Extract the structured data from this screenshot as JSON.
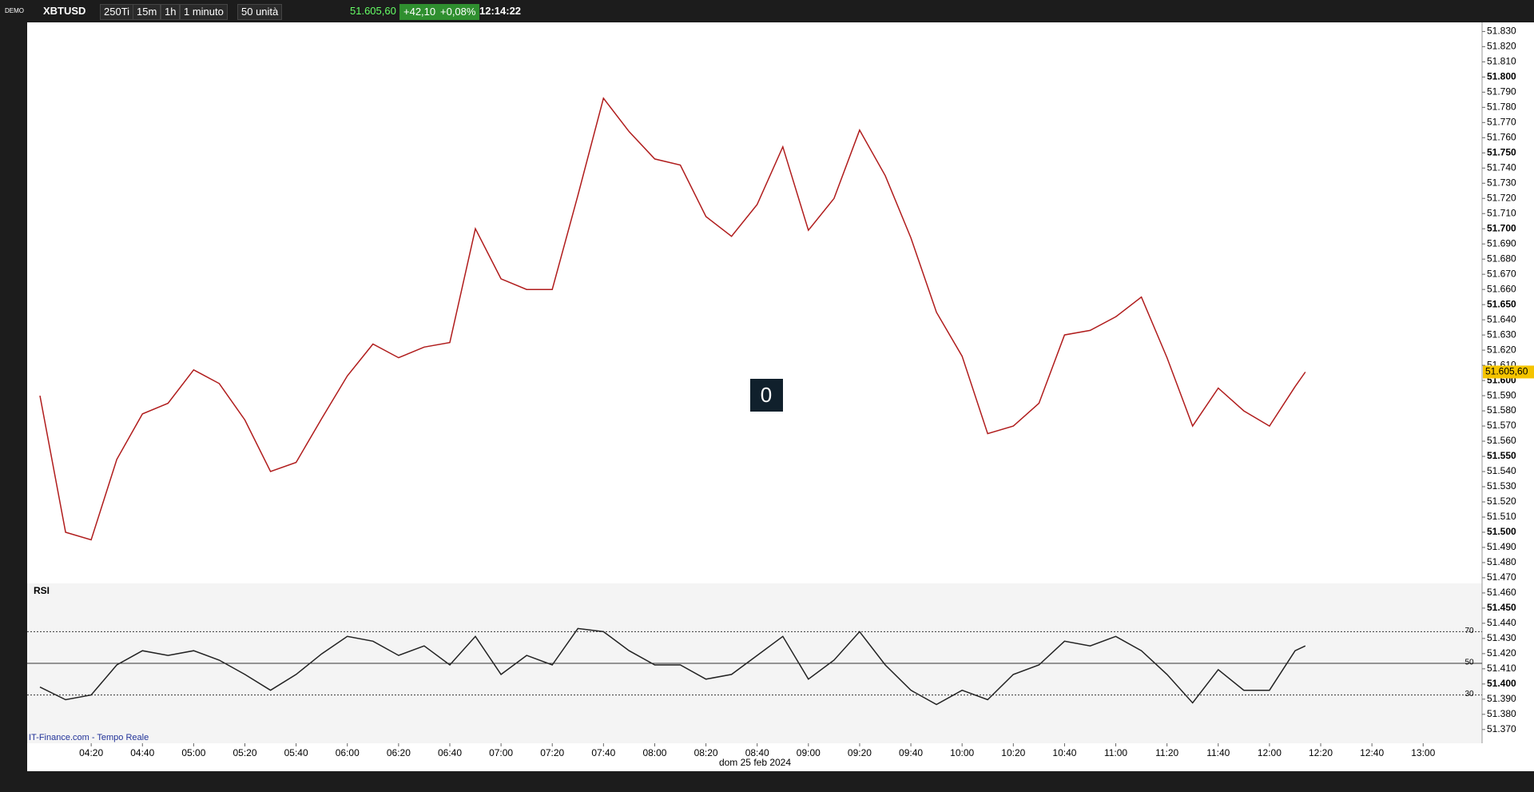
{
  "toolbar": {
    "demo": "DEMO",
    "symbol": "XBTUSD",
    "ticks": "250Ti",
    "tf1": "15m",
    "tf2": "1h",
    "period": "1 minuto",
    "units": "50 unità",
    "price": "51.605,60",
    "change": "+42,10",
    "change_pct": "+0,08%",
    "time": "12:14:22"
  },
  "counter": "0",
  "footer": {
    "source": "IT-Finance.com - Tempo Reale",
    "date": "dom 25 feb 2024"
  },
  "chart_data": [
    {
      "type": "line",
      "color": "#b01c1c",
      "x": [
        "04:00",
        "04:10",
        "04:20",
        "04:30",
        "04:40",
        "04:50",
        "05:00",
        "05:10",
        "05:20",
        "05:30",
        "05:40",
        "05:50",
        "06:00",
        "06:10",
        "06:20",
        "06:30",
        "06:40",
        "06:50",
        "07:00",
        "07:10",
        "07:20",
        "07:30",
        "07:40",
        "07:50",
        "08:00",
        "08:10",
        "08:20",
        "08:30",
        "08:40",
        "08:50",
        "09:00",
        "09:10",
        "09:20",
        "09:30",
        "09:40",
        "09:50",
        "10:00",
        "10:10",
        "10:20",
        "10:30",
        "10:40",
        "10:50",
        "11:00",
        "11:10",
        "11:20",
        "11:30",
        "11:40",
        "11:50",
        "12:00",
        "12:10",
        "12:14"
      ],
      "values": [
        51.59,
        51.5,
        51.495,
        51.548,
        51.578,
        51.585,
        51.607,
        51.598,
        51.574,
        51.54,
        51.546,
        51.575,
        51.603,
        51.624,
        51.615,
        51.622,
        51.625,
        51.7,
        51.667,
        51.66,
        51.66,
        51.722,
        51.786,
        51.764,
        51.746,
        51.742,
        51.708,
        51.695,
        51.716,
        51.754,
        51.699,
        51.72,
        51.765,
        51.735,
        51.694,
        51.645,
        51.616,
        51.565,
        51.57,
        51.585,
        51.63,
        51.633,
        51.642,
        51.655,
        51.615,
        51.57,
        51.595,
        51.58,
        51.57,
        51.596,
        51.6056
      ],
      "last_value_label": "51.605,60",
      "xlim": [
        "03:55",
        "13:23"
      ],
      "xticks": [
        "04:20",
        "04:40",
        "05:00",
        "05:20",
        "05:40",
        "06:00",
        "06:20",
        "06:40",
        "07:00",
        "07:20",
        "07:40",
        "08:00",
        "08:20",
        "08:40",
        "09:00",
        "09:20",
        "09:40",
        "10:00",
        "10:20",
        "10:40",
        "11:00",
        "11:20",
        "11:40",
        "12:00",
        "12:20",
        "12:40",
        "13:00"
      ],
      "ylim": [
        51.362,
        51.836
      ],
      "yticks": [
        {
          "value": 51.83,
          "label": "51.830"
        },
        {
          "value": 51.82,
          "label": "51.820"
        },
        {
          "value": 51.81,
          "label": "51.810"
        },
        {
          "value": 51.8,
          "label": "51.800"
        },
        {
          "value": 51.79,
          "label": "51.790"
        },
        {
          "value": 51.78,
          "label": "51.780"
        },
        {
          "value": 51.77,
          "label": "51.770"
        },
        {
          "value": 51.76,
          "label": "51.760"
        },
        {
          "value": 51.75,
          "label": "51.750"
        },
        {
          "value": 51.74,
          "label": "51.740"
        },
        {
          "value": 51.73,
          "label": "51.730"
        },
        {
          "value": 51.72,
          "label": "51.720"
        },
        {
          "value": 51.71,
          "label": "51.710"
        },
        {
          "value": 51.7,
          "label": "51.700"
        },
        {
          "value": 51.69,
          "label": "51.690"
        },
        {
          "value": 51.68,
          "label": "51.680"
        },
        {
          "value": 51.67,
          "label": "51.670"
        },
        {
          "value": 51.66,
          "label": "51.660"
        },
        {
          "value": 51.65,
          "label": "51.650"
        },
        {
          "value": 51.64,
          "label": "51.640"
        },
        {
          "value": 51.63,
          "label": "51.630"
        },
        {
          "value": 51.62,
          "label": "51.620"
        },
        {
          "value": 51.61,
          "label": "51.610"
        },
        {
          "value": 51.6,
          "label": "51.600"
        },
        {
          "value": 51.59,
          "label": "51.590"
        },
        {
          "value": 51.58,
          "label": "51.580"
        },
        {
          "value": 51.57,
          "label": "51.570"
        },
        {
          "value": 51.56,
          "label": "51.560"
        },
        {
          "value": 51.55,
          "label": "51.550"
        },
        {
          "value": 51.54,
          "label": "51.540"
        },
        {
          "value": 51.53,
          "label": "51.530"
        },
        {
          "value": 51.52,
          "label": "51.520"
        },
        {
          "value": 51.51,
          "label": "51.510"
        },
        {
          "value": 51.5,
          "label": "51.500"
        },
        {
          "value": 51.49,
          "label": "51.490"
        },
        {
          "value": 51.48,
          "label": "51.480"
        },
        {
          "value": 51.47,
          "label": "51.470"
        },
        {
          "value": 51.46,
          "label": "51.460"
        },
        {
          "value": 51.45,
          "label": "51.450"
        },
        {
          "value": 51.44,
          "label": "51.440"
        },
        {
          "value": 51.43,
          "label": "51.430"
        },
        {
          "value": 51.42,
          "label": "51.420"
        },
        {
          "value": 51.41,
          "label": "51.410"
        },
        {
          "value": 51.4,
          "label": "51.400"
        },
        {
          "value": 51.39,
          "label": "51.390"
        },
        {
          "value": 51.38,
          "label": "51.380"
        },
        {
          "value": 51.37,
          "label": "51.370"
        }
      ]
    },
    {
      "type": "line",
      "title": "RSI",
      "color": "#222222",
      "values": [
        35,
        27,
        30,
        49,
        58,
        55,
        58,
        52,
        43,
        33,
        43,
        56,
        67,
        64,
        55,
        61,
        49,
        67,
        43,
        55,
        49,
        72,
        70,
        58,
        49,
        49,
        40,
        43,
        55,
        67,
        40,
        52,
        70,
        49,
        33,
        24,
        33,
        27,
        43,
        49,
        64,
        61,
        67,
        58,
        43,
        25,
        46,
        33,
        33,
        58,
        61
      ],
      "ylim": [
        0,
        100
      ],
      "yticks": [
        30,
        50,
        70
      ]
    }
  ]
}
